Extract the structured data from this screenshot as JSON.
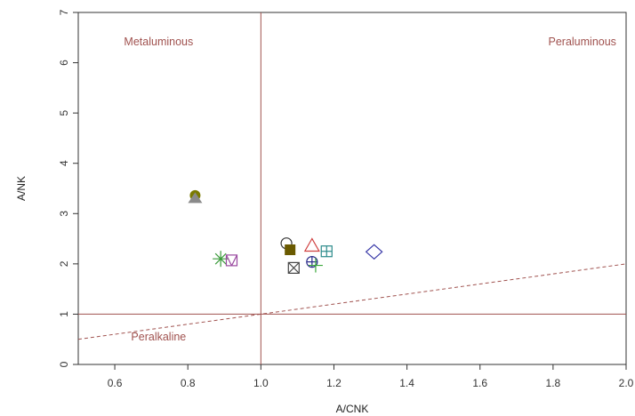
{
  "chart_data": {
    "type": "scatter",
    "xlabel": "A/CNK",
    "ylabel": "A/NK",
    "xlim": [
      0.5,
      2.0
    ],
    "ylim": [
      0,
      7
    ],
    "x_ticks": [
      "0.6",
      "0.8",
      "1.0",
      "1.2",
      "1.4",
      "1.6",
      "1.8",
      "2.0"
    ],
    "y_ticks": [
      "0",
      "1",
      "2",
      "3",
      "4",
      "5",
      "6",
      "7"
    ],
    "grid": false,
    "reference_lines": [
      {
        "type": "vertical",
        "x": 1.0,
        "style": "solid"
      },
      {
        "type": "horizontal",
        "y": 1.0,
        "style": "solid"
      },
      {
        "type": "line",
        "from": [
          0.5,
          0.5
        ],
        "to": [
          2.0,
          2.0
        ],
        "style": "dashed"
      }
    ],
    "region_labels": [
      {
        "text": "Metaluminous",
        "x": 0.72,
        "y": 6.35
      },
      {
        "text": "Peraluminous",
        "x": 1.88,
        "y": 6.35
      },
      {
        "text": "Peralkaline",
        "x": 0.72,
        "y": 0.48
      }
    ],
    "points": [
      {
        "x": 0.82,
        "y": 3.36,
        "marker": "filled-circle",
        "color": "#7a7a00"
      },
      {
        "x": 0.82,
        "y": 3.3,
        "marker": "filled-triangle",
        "color": "#8a8a8a"
      },
      {
        "x": 0.89,
        "y": 2.1,
        "marker": "asterisk",
        "color": "#3a9a3a"
      },
      {
        "x": 0.92,
        "y": 2.07,
        "marker": "square-v",
        "color": "#9a4aa0"
      },
      {
        "x": 1.07,
        "y": 2.41,
        "marker": "open-circle",
        "color": "#333333"
      },
      {
        "x": 1.08,
        "y": 2.28,
        "marker": "filled-square",
        "color": "#6a5a00"
      },
      {
        "x": 1.09,
        "y": 1.92,
        "marker": "square-x",
        "color": "#444444"
      },
      {
        "x": 1.14,
        "y": 2.36,
        "marker": "open-triangle",
        "color": "#d04040"
      },
      {
        "x": 1.14,
        "y": 2.04,
        "marker": "circle-plus",
        "color": "#2a2a8a"
      },
      {
        "x": 1.15,
        "y": 1.97,
        "marker": "plus",
        "color": "#3aa83a"
      },
      {
        "x": 1.18,
        "y": 2.25,
        "marker": "square-plus",
        "color": "#2a8a8a"
      },
      {
        "x": 1.31,
        "y": 2.24,
        "marker": "open-diamond",
        "color": "#3a3aa8"
      }
    ],
    "colors": {
      "reference_line": "#a0524f",
      "region_text": "#a0524f",
      "axis": "#333333"
    }
  }
}
